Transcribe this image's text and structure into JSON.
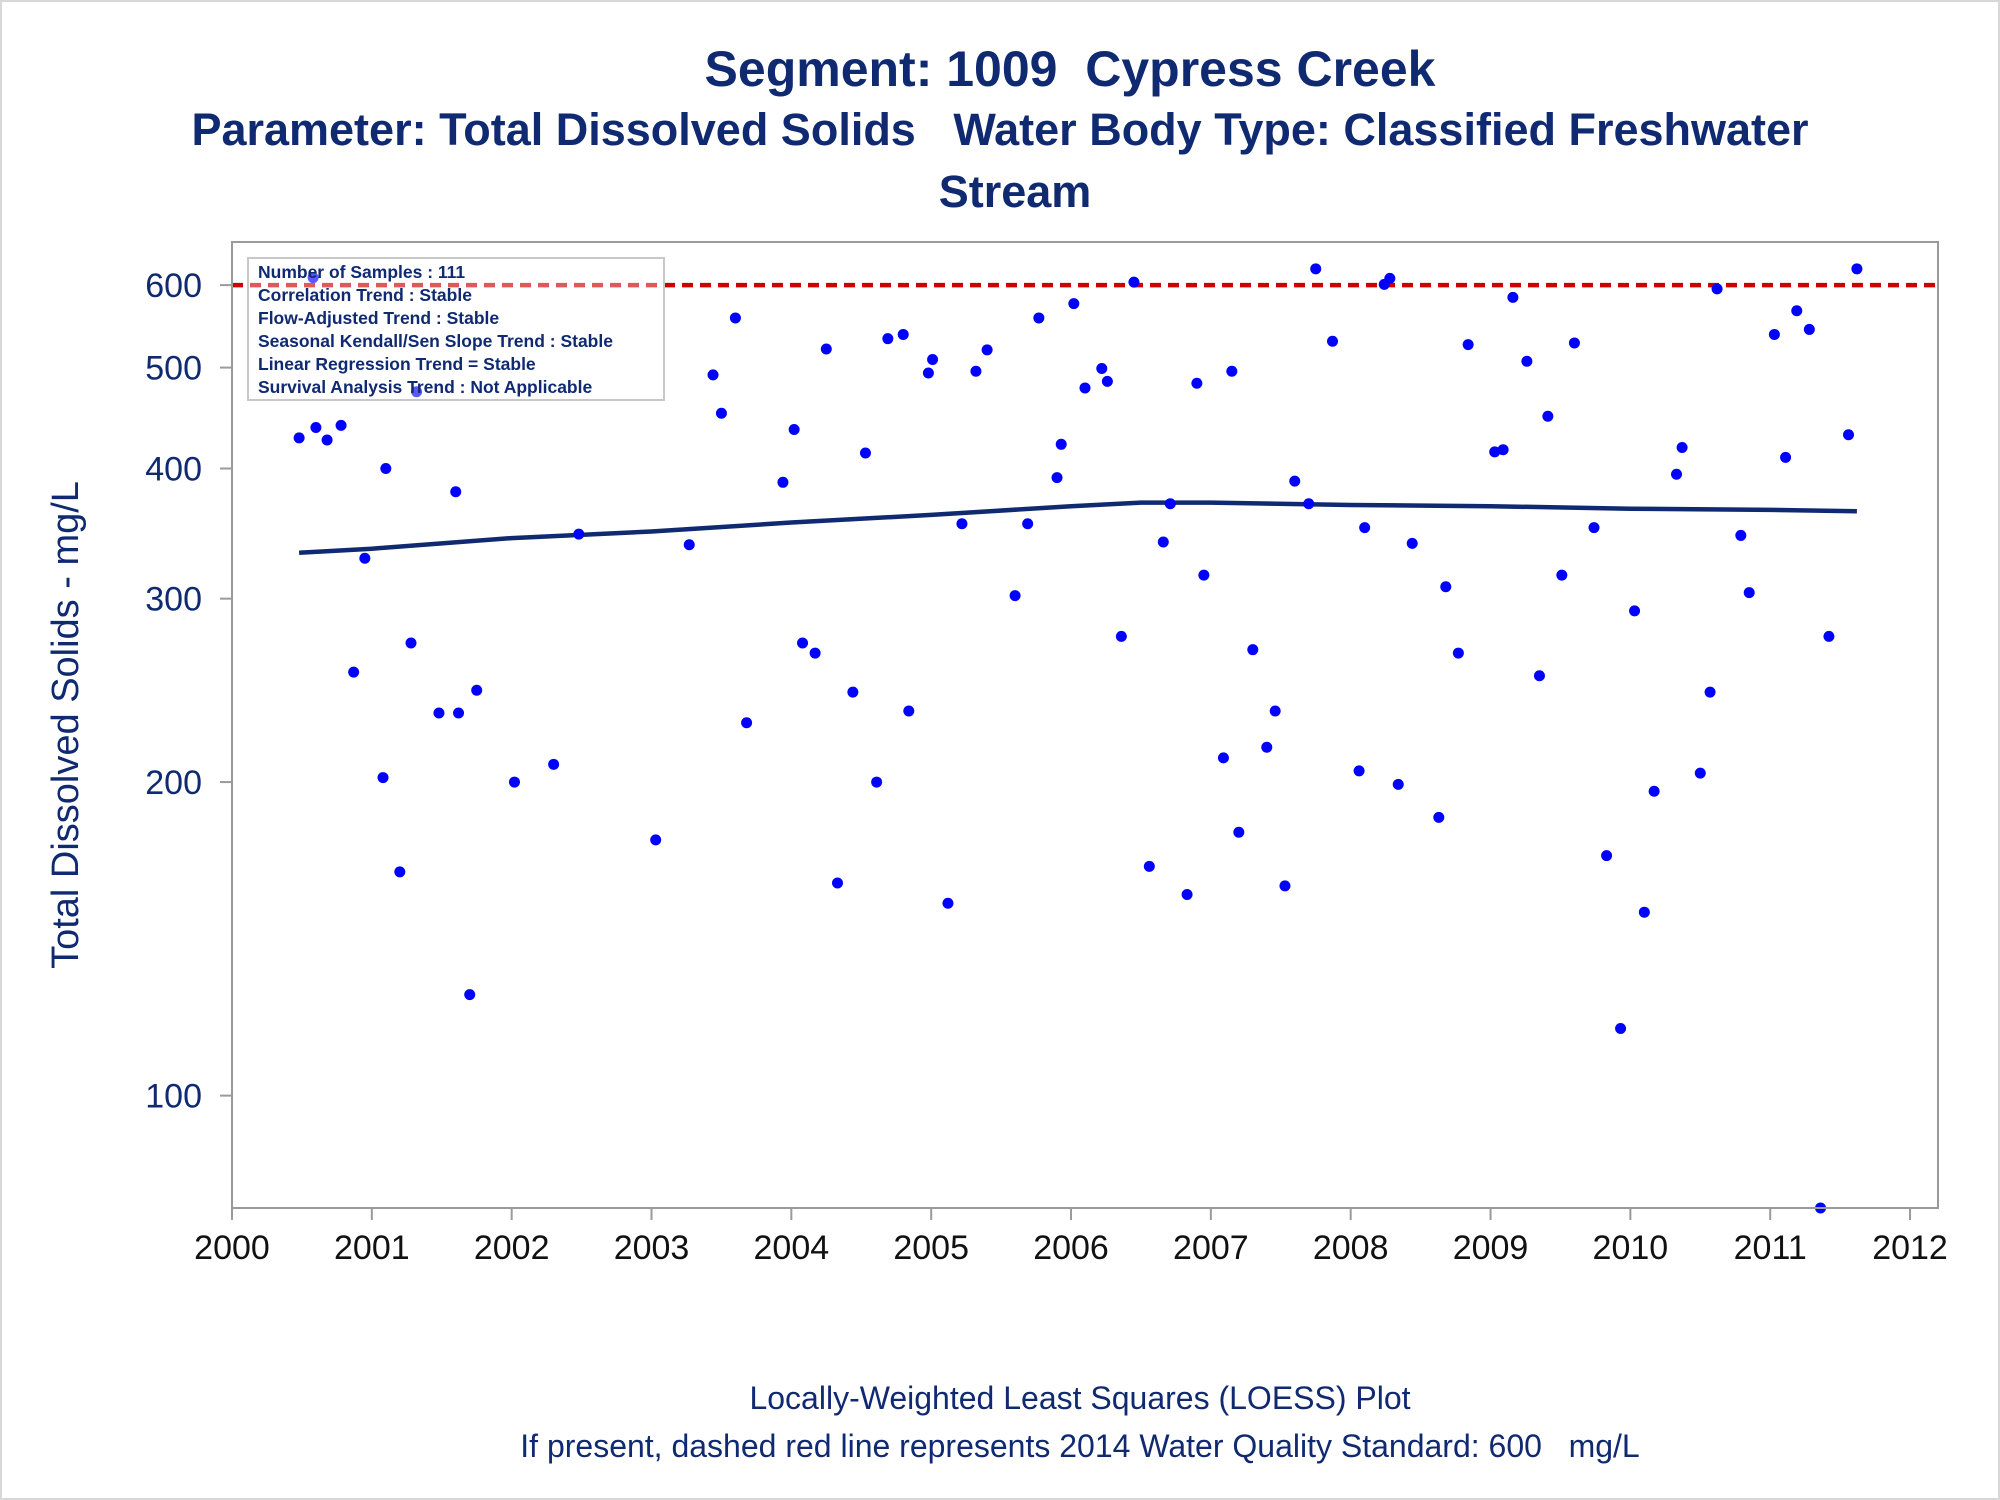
{
  "chart_data": {
    "type": "scatter",
    "title": "Segment: 1009  Cypress Creek",
    "subtitle_line1": "Parameter: Total Dissolved Solids   Water Body Type: Classified Freshwater",
    "subtitle_line2": "Stream",
    "ylabel": "Total Dissolved Solids - mg/L",
    "footnote_line1": "Locally-Weighted Least Squares (LOESS) Plot",
    "footnote_line2": "If present, dashed red line represents 2014 Water Quality Standard: 600   mg/L",
    "y_scale": "log",
    "xlim": [
      2000,
      2012.2
    ],
    "ylim": [
      78,
      660
    ],
    "x_ticks": [
      2000,
      2001,
      2002,
      2003,
      2004,
      2005,
      2006,
      2007,
      2008,
      2009,
      2010,
      2011,
      2012
    ],
    "y_ticks": [
      100,
      200,
      300,
      400,
      500,
      600
    ],
    "reference_line": {
      "value": 600,
      "style": "dashed",
      "color": "#cc0000"
    },
    "point_color": "#0000ff",
    "trend_color": "#102a72",
    "legend_box": {
      "placement": "top-left",
      "lines": [
        "Number of Samples : 111",
        "Correlation Trend : Stable",
        "Flow-Adjusted Trend : Stable",
        "Seasonal Kendall/Sen Slope Trend : Stable",
        "Linear Regression Trend = Stable",
        "Survival Analysis Trend : Not Applicable"
      ]
    },
    "loess": {
      "x": [
        2000.48,
        2001.0,
        2002.0,
        2003.0,
        2004.0,
        2005.0,
        2006.0,
        2006.5,
        2007.0,
        2008.0,
        2009.0,
        2010.0,
        2011.0,
        2011.62
      ],
      "y": [
        332,
        335,
        343,
        348,
        355,
        361,
        368,
        371,
        371,
        369,
        368,
        366,
        365,
        364
      ]
    },
    "points": {
      "x": [
        2000.48,
        2000.58,
        2000.6,
        2000.68,
        2000.78,
        2000.87,
        2000.95,
        2001.08,
        2001.1,
        2001.2,
        2001.28,
        2001.32,
        2001.48,
        2001.6,
        2001.62,
        2001.7,
        2001.75,
        2002.02,
        2002.3,
        2002.48,
        2003.03,
        2003.27,
        2003.44,
        2003.5,
        2003.6,
        2003.68,
        2003.94,
        2004.02,
        2004.08,
        2004.17,
        2004.25,
        2004.33,
        2004.44,
        2004.53,
        2004.61,
        2004.69,
        2004.8,
        2004.84,
        2004.98,
        2005.01,
        2005.12,
        2005.22,
        2005.32,
        2005.4,
        2005.6,
        2005.69,
        2005.77,
        2005.9,
        2005.93,
        2006.02,
        2006.1,
        2006.22,
        2006.26,
        2006.36,
        2006.45,
        2006.56,
        2006.66,
        2006.71,
        2006.83,
        2006.9,
        2006.95,
        2007.09,
        2007.15,
        2007.2,
        2007.3,
        2007.4,
        2007.46,
        2007.53,
        2007.6,
        2007.7,
        2007.75,
        2007.87,
        2008.06,
        2008.1,
        2008.24,
        2008.28,
        2008.34,
        2008.44,
        2008.63,
        2008.68,
        2008.77,
        2008.84,
        2009.03,
        2009.09,
        2009.16,
        2009.26,
        2009.35,
        2009.41,
        2009.51,
        2009.6,
        2009.74,
        2009.83,
        2009.93,
        2010.03,
        2010.1,
        2010.17,
        2010.33,
        2010.37,
        2010.5,
        2010.57,
        2010.62,
        2010.79,
        2010.85,
        2011.03,
        2011.11,
        2011.19,
        2011.28,
        2011.36,
        2011.42,
        2011.56,
        2011.62
      ],
      "y": [
        428,
        610,
        438,
        426,
        440,
        255,
        328,
        202,
        400,
        164,
        272,
        474,
        233,
        380,
        233,
        125,
        245,
        200,
        208,
        346,
        176,
        338,
        492,
        452,
        558,
        228,
        388,
        436,
        272,
        266,
        521,
        160,
        244,
        414,
        200,
        533,
        538,
        234,
        494,
        509,
        153,
        354,
        496,
        520,
        302,
        354,
        558,
        392,
        422,
        576,
        478,
        499,
        485,
        276,
        604,
        166,
        340,
        370,
        156,
        483,
        316,
        211,
        496,
        179,
        268,
        216,
        234,
        159,
        389,
        370,
        622,
        530,
        205,
        351,
        601,
        609,
        199,
        339,
        185,
        308,
        266,
        526,
        415,
        417,
        584,
        507,
        253,
        449,
        316,
        528,
        351,
        170,
        116,
        292,
        150,
        196,
        395,
        419,
        204,
        244,
        595,
        345,
        304,
        538,
        410,
        567,
        544,
        78,
        276,
        431,
        622
      ]
    }
  }
}
